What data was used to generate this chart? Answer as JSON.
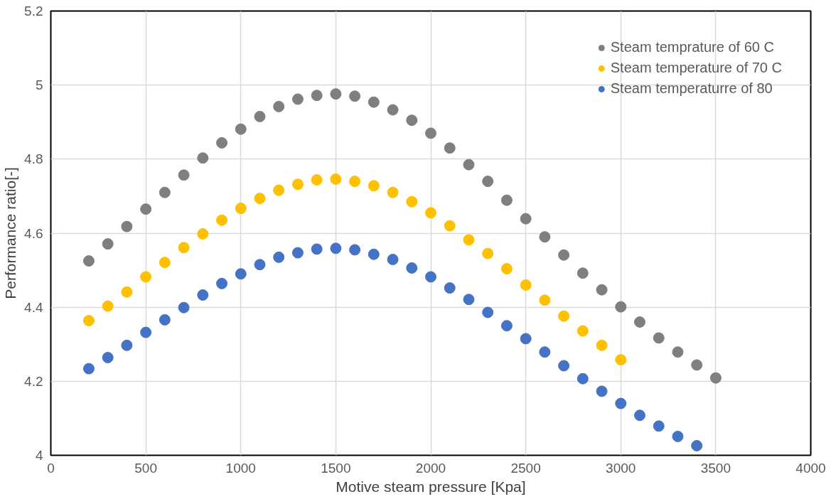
{
  "chart_data": {
    "type": "scatter",
    "xlabel": "Motive steam pressure [Kpa]",
    "ylabel": "Performance ratio[-]",
    "xlim": [
      0,
      4000
    ],
    "xticks": [
      0,
      500,
      1000,
      1500,
      2000,
      2500,
      3000,
      3500,
      4000
    ],
    "ylim": [
      4,
      5.2
    ],
    "yticks": [
      4,
      {
        "value": 4.2,
        "label": "4.2"
      },
      {
        "value": 4.4,
        "label": "4.4"
      },
      {
        "value": 4.6,
        "label": "4.6"
      },
      {
        "value": 4.8,
        "label": "4.8"
      },
      5,
      {
        "value": 5.2,
        "label": "5.2"
      }
    ],
    "grid": true,
    "legend": "top right",
    "marker": "circle",
    "series": [
      {
        "name": "Steam temprature of 60 C",
        "color": "#7f7f7f",
        "x": [
          200,
          300,
          400,
          500,
          600,
          700,
          800,
          900,
          1000,
          1100,
          1200,
          1300,
          1400,
          1500,
          1600,
          1700,
          1800,
          1900,
          2000,
          2100,
          2200,
          2300,
          2400,
          2500,
          2600,
          2700,
          2800,
          2900,
          3000,
          3100,
          3200,
          3300,
          3400,
          3500
        ],
        "values": [
          4.525,
          4.571,
          4.618,
          4.665,
          4.71,
          4.757,
          4.803,
          4.844,
          4.881,
          4.915,
          4.942,
          4.962,
          4.972,
          4.976,
          4.97,
          4.954,
          4.933,
          4.905,
          4.87,
          4.83,
          4.785,
          4.74,
          4.689,
          4.639,
          4.59,
          4.541,
          4.492,
          4.447,
          4.401,
          4.36,
          4.317,
          4.279,
          4.244,
          4.209
        ]
      },
      {
        "name": "Steam temperature of 70 C",
        "color": "#ffc000",
        "x": [
          200,
          300,
          400,
          500,
          600,
          700,
          800,
          900,
          1000,
          1100,
          1200,
          1300,
          1400,
          1500,
          1600,
          1700,
          1800,
          1900,
          2000,
          2100,
          2200,
          2300,
          2400,
          2500,
          2600,
          2700,
          2800,
          2900,
          3000
        ],
        "values": [
          4.364,
          4.403,
          4.441,
          4.482,
          4.521,
          4.561,
          4.598,
          4.635,
          4.667,
          4.694,
          4.716,
          4.732,
          4.744,
          4.746,
          4.74,
          4.728,
          4.71,
          4.685,
          4.655,
          4.62,
          4.582,
          4.545,
          4.504,
          4.46,
          4.419,
          4.376,
          4.336,
          4.297,
          4.258
        ]
      },
      {
        "name": "Steam temperaturre of 80",
        "color": "#4472c4",
        "x": [
          200,
          300,
          400,
          500,
          600,
          700,
          800,
          900,
          1000,
          1100,
          1200,
          1300,
          1400,
          1500,
          1600,
          1700,
          1800,
          1900,
          2000,
          2100,
          2200,
          2300,
          2400,
          2500,
          2600,
          2700,
          2800,
          2900,
          3000,
          3100,
          3200,
          3300,
          3400
        ],
        "values": [
          4.234,
          4.264,
          4.297,
          4.332,
          4.366,
          4.399,
          4.433,
          4.464,
          4.49,
          4.515,
          4.535,
          4.547,
          4.557,
          4.559,
          4.555,
          4.543,
          4.529,
          4.506,
          4.482,
          4.452,
          4.421,
          4.386,
          4.35,
          4.315,
          4.279,
          4.242,
          4.207,
          4.173,
          4.14,
          4.108,
          4.079,
          4.051,
          4.026
        ]
      }
    ]
  }
}
